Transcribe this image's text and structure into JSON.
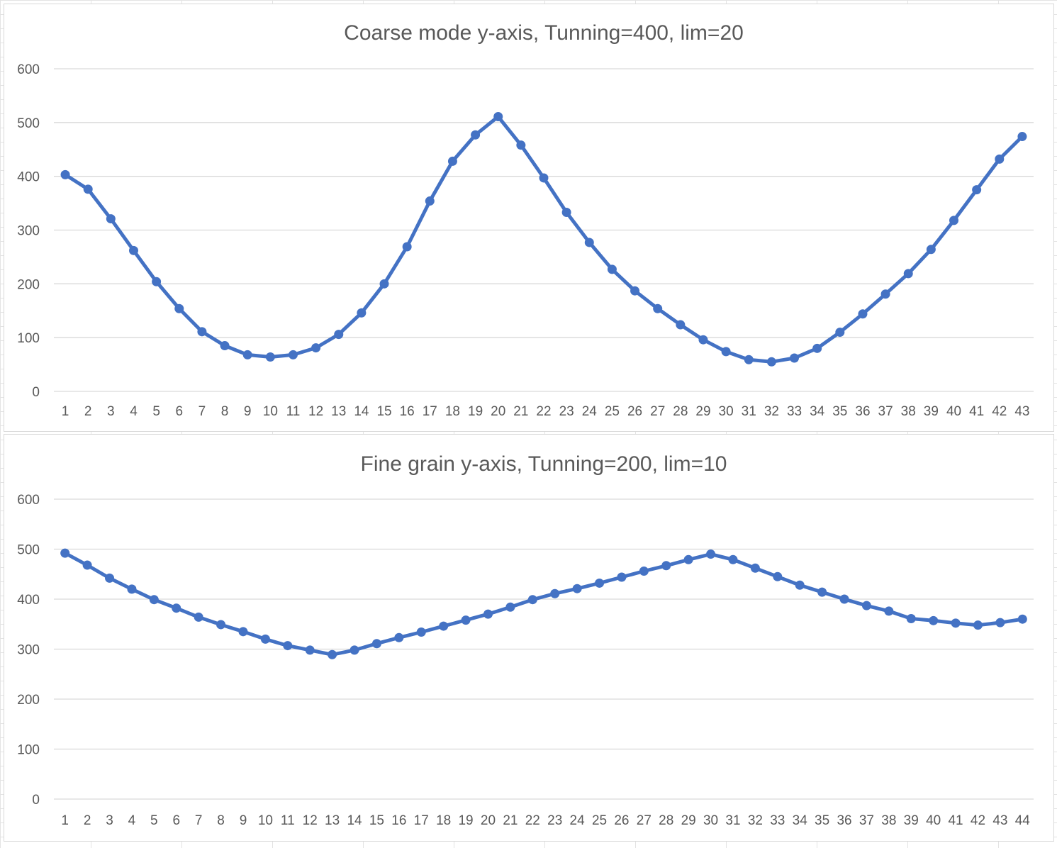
{
  "chart_data": [
    {
      "type": "line",
      "title": "Coarse mode y-axis, Tunning=400, lim=20",
      "xlabel": "",
      "ylabel": "",
      "ylim": [
        0,
        600
      ],
      "yticks": [
        "0",
        "100",
        "200",
        "300",
        "400",
        "500",
        "600"
      ],
      "grid": true,
      "legend": "none",
      "color": "#4472C4",
      "x": [
        1,
        2,
        3,
        4,
        5,
        6,
        7,
        8,
        9,
        10,
        11,
        12,
        13,
        14,
        15,
        16,
        17,
        18,
        19,
        20,
        21,
        22,
        23,
        24,
        25,
        26,
        27,
        28,
        29,
        30,
        31,
        32,
        33,
        34,
        35,
        36,
        37,
        38,
        39,
        40,
        41,
        42,
        43
      ],
      "series": [
        {
          "values": [
            403,
            376,
            321,
            262,
            204,
            154,
            111,
            85,
            68,
            64,
            68,
            81,
            106,
            146,
            200,
            269,
            354,
            428,
            477,
            511,
            458,
            397,
            333,
            277,
            227,
            187,
            154,
            124,
            96,
            74,
            59,
            55,
            62,
            80,
            110,
            144,
            181,
            219,
            264,
            318,
            375,
            432,
            474
          ]
        }
      ]
    },
    {
      "type": "line",
      "title": "Fine grain y-axis, Tunning=200, lim=10",
      "xlabel": "",
      "ylabel": "",
      "ylim": [
        0,
        600
      ],
      "yticks": [
        "0",
        "100",
        "200",
        "300",
        "400",
        "500",
        "600"
      ],
      "grid": true,
      "legend": "none",
      "color": "#4472C4",
      "x": [
        1,
        2,
        3,
        4,
        5,
        6,
        7,
        8,
        9,
        10,
        11,
        12,
        13,
        14,
        15,
        16,
        17,
        18,
        19,
        20,
        21,
        22,
        23,
        24,
        25,
        26,
        27,
        28,
        29,
        30,
        31,
        32,
        33,
        34,
        35,
        36,
        37,
        38,
        39,
        40,
        41,
        42,
        43,
        44
      ],
      "series": [
        {
          "values": [
            492,
            468,
            442,
            420,
            399,
            382,
            364,
            349,
            335,
            320,
            307,
            298,
            289,
            298,
            311,
            323,
            334,
            346,
            358,
            370,
            384,
            399,
            411,
            421,
            432,
            444,
            456,
            467,
            479,
            490,
            479,
            462,
            445,
            428,
            414,
            400,
            387,
            376,
            361,
            357,
            352,
            348,
            353,
            360
          ]
        }
      ]
    }
  ]
}
